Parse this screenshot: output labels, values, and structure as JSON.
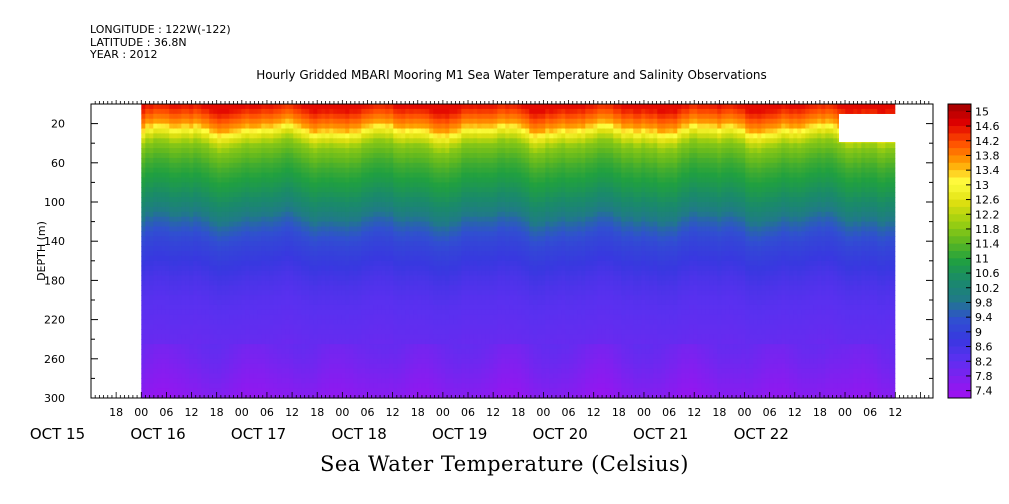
{
  "header": {
    "longitude": "LONGITUDE : 122W(-122)",
    "latitude": "LATITUDE : 36.8N",
    "year": "YEAR : 2012"
  },
  "chart_data": {
    "type": "heatmap",
    "title": "Hourly Gridded MBARI Mooring M1 Sea Water Temperature and Salinity Observations",
    "xlabel": "Sea Water Temperature (Celsius)",
    "ylabel": "DEPTH (m)",
    "ylim": [
      300,
      0
    ],
    "y_ticks": [
      20,
      60,
      100,
      140,
      180,
      220,
      260,
      300
    ],
    "x_hour_ticks": [
      "18",
      "00",
      "06",
      "12",
      "18",
      "00",
      "06",
      "12",
      "18",
      "00",
      "06",
      "12",
      "18",
      "00",
      "06",
      "12",
      "18",
      "00",
      "06",
      "12",
      "18",
      "00",
      "06",
      "12",
      "18",
      "00",
      "06",
      "12",
      "18",
      "00",
      "06",
      "12"
    ],
    "x_day_labels": [
      "OCT 15",
      "OCT 16",
      "OCT 17",
      "OCT 18",
      "OCT 19",
      "OCT 20",
      "OCT 21",
      "OCT 22"
    ],
    "xlim_hours": [
      -12,
      189
    ],
    "data_start_hour": 0,
    "data_end_hour": 180,
    "colorbar": {
      "labels": [
        "15",
        "14.6",
        "14.2",
        "13.8",
        "13.4",
        "13",
        "12.6",
        "12.2",
        "11.8",
        "11.4",
        "11",
        "10.6",
        "10.2",
        "9.8",
        "9.4",
        "9",
        "8.6",
        "8.2",
        "7.8",
        "7.4"
      ],
      "range": [
        7.2,
        15.2
      ],
      "colors": [
        "#a010f0",
        "#8020f0",
        "#5a30f0",
        "#3838e0",
        "#3050d0",
        "#207a88",
        "#1a8a6a",
        "#20a040",
        "#60b820",
        "#a0d010",
        "#e0e010",
        "#ffff40",
        "#ffa000",
        "#ff5000",
        "#e00000",
        "#a00000"
      ]
    },
    "profile": {
      "depths": [
        0,
        10,
        20,
        30,
        40,
        60,
        80,
        100,
        120,
        140,
        160,
        180,
        200,
        220,
        240,
        260,
        280,
        300
      ],
      "temperatures": [
        14.6,
        14.1,
        13.6,
        12.6,
        11.8,
        11.2,
        10.8,
        10.3,
        9.6,
        9.1,
        8.8,
        8.5,
        8.3,
        8.2,
        8.1,
        7.95,
        7.75,
        7.55
      ]
    }
  }
}
